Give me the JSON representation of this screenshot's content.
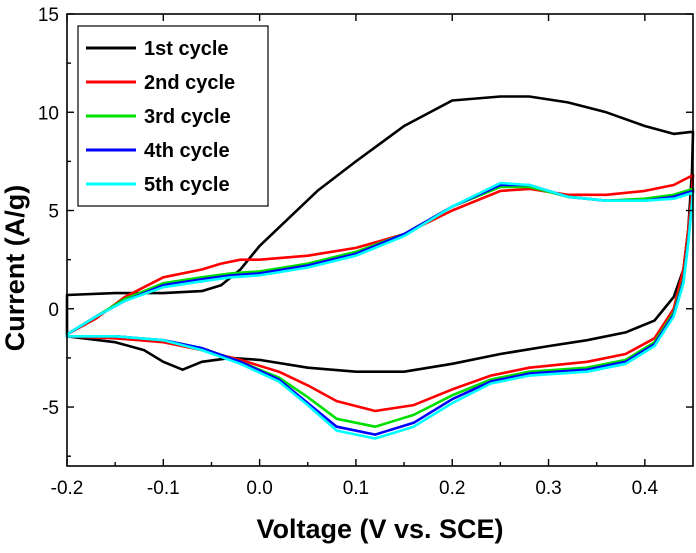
{
  "chart_data": {
    "type": "line",
    "title": "",
    "xlabel": "Voltage (V vs. SCE)",
    "ylabel": "Current (A/g)",
    "xlim": [
      -0.2,
      0.45
    ],
    "ylim": [
      -8,
      15
    ],
    "xticks": [
      -0.2,
      -0.1,
      0.0,
      0.1,
      0.2,
      0.3,
      0.4
    ],
    "xtick_labels": [
      "-0.2",
      "-0.1",
      "0.0",
      "0.1",
      "0.2",
      "0.3",
      "0.4"
    ],
    "yticks": [
      -5,
      0,
      5,
      10,
      15
    ],
    "ytick_labels": [
      "-5",
      "0",
      "5",
      "10",
      "15"
    ],
    "grid": false,
    "legend_position": "top-left",
    "series": [
      {
        "name": "1st cycle",
        "color": "#000000",
        "points": [
          [
            -0.2,
            0.7
          ],
          [
            -0.15,
            0.8
          ],
          [
            -0.1,
            0.8
          ],
          [
            -0.06,
            0.9
          ],
          [
            -0.04,
            1.2
          ],
          [
            -0.02,
            2.0
          ],
          [
            0.0,
            3.2
          ],
          [
            0.03,
            4.6
          ],
          [
            0.06,
            6.0
          ],
          [
            0.1,
            7.5
          ],
          [
            0.15,
            9.3
          ],
          [
            0.2,
            10.6
          ],
          [
            0.25,
            10.8
          ],
          [
            0.28,
            10.8
          ],
          [
            0.32,
            10.5
          ],
          [
            0.36,
            10.0
          ],
          [
            0.4,
            9.3
          ],
          [
            0.43,
            8.9
          ],
          [
            0.448,
            9.0
          ],
          [
            0.45,
            9.0
          ],
          [
            0.449,
            7.0
          ],
          [
            0.445,
            4.0
          ],
          [
            0.44,
            2.0
          ],
          [
            0.43,
            0.6
          ],
          [
            0.41,
            -0.6
          ],
          [
            0.38,
            -1.2
          ],
          [
            0.34,
            -1.6
          ],
          [
            0.3,
            -1.9
          ],
          [
            0.25,
            -2.3
          ],
          [
            0.2,
            -2.8
          ],
          [
            0.15,
            -3.2
          ],
          [
            0.1,
            -3.2
          ],
          [
            0.05,
            -3.0
          ],
          [
            0.0,
            -2.6
          ],
          [
            -0.03,
            -2.5
          ],
          [
            -0.06,
            -2.7
          ],
          [
            -0.08,
            -3.1
          ],
          [
            -0.1,
            -2.7
          ],
          [
            -0.12,
            -2.1
          ],
          [
            -0.15,
            -1.7
          ],
          [
            -0.2,
            -1.4
          ]
        ]
      },
      {
        "name": "2nd cycle",
        "color": "#ff0000",
        "points": [
          [
            -0.2,
            -1.3
          ],
          [
            -0.17,
            -0.5
          ],
          [
            -0.14,
            0.6
          ],
          [
            -0.1,
            1.6
          ],
          [
            -0.06,
            2.0
          ],
          [
            -0.04,
            2.3
          ],
          [
            -0.02,
            2.5
          ],
          [
            0.0,
            2.5
          ],
          [
            0.05,
            2.7
          ],
          [
            0.1,
            3.1
          ],
          [
            0.15,
            3.8
          ],
          [
            0.2,
            5.0
          ],
          [
            0.25,
            6.0
          ],
          [
            0.28,
            6.1
          ],
          [
            0.32,
            5.8
          ],
          [
            0.36,
            5.8
          ],
          [
            0.4,
            6.0
          ],
          [
            0.43,
            6.3
          ],
          [
            0.45,
            6.8
          ],
          [
            0.449,
            6.0
          ],
          [
            0.445,
            4.0
          ],
          [
            0.44,
            2.0
          ],
          [
            0.43,
            0.0
          ],
          [
            0.41,
            -1.5
          ],
          [
            0.38,
            -2.3
          ],
          [
            0.34,
            -2.7
          ],
          [
            0.28,
            -3.0
          ],
          [
            0.24,
            -3.4
          ],
          [
            0.2,
            -4.1
          ],
          [
            0.16,
            -4.9
          ],
          [
            0.12,
            -5.2
          ],
          [
            0.08,
            -4.7
          ],
          [
            0.05,
            -3.9
          ],
          [
            0.02,
            -3.2
          ],
          [
            -0.02,
            -2.6
          ],
          [
            -0.06,
            -2.1
          ],
          [
            -0.1,
            -1.7
          ],
          [
            -0.15,
            -1.5
          ],
          [
            -0.2,
            -1.4
          ]
        ]
      },
      {
        "name": "3rd cycle",
        "color": "#00e000",
        "points": [
          [
            -0.2,
            -1.3
          ],
          [
            -0.17,
            -0.4
          ],
          [
            -0.14,
            0.5
          ],
          [
            -0.1,
            1.3
          ],
          [
            -0.06,
            1.6
          ],
          [
            -0.03,
            1.8
          ],
          [
            0.0,
            1.9
          ],
          [
            0.05,
            2.3
          ],
          [
            0.1,
            2.9
          ],
          [
            0.15,
            3.8
          ],
          [
            0.2,
            5.2
          ],
          [
            0.25,
            6.2
          ],
          [
            0.28,
            6.2
          ],
          [
            0.32,
            5.7
          ],
          [
            0.36,
            5.5
          ],
          [
            0.4,
            5.6
          ],
          [
            0.43,
            5.8
          ],
          [
            0.45,
            6.1
          ],
          [
            0.449,
            5.5
          ],
          [
            0.445,
            3.5
          ],
          [
            0.44,
            1.5
          ],
          [
            0.43,
            -0.2
          ],
          [
            0.41,
            -1.7
          ],
          [
            0.38,
            -2.6
          ],
          [
            0.34,
            -3.0
          ],
          [
            0.28,
            -3.2
          ],
          [
            0.24,
            -3.6
          ],
          [
            0.2,
            -4.4
          ],
          [
            0.16,
            -5.4
          ],
          [
            0.12,
            -6.0
          ],
          [
            0.08,
            -5.6
          ],
          [
            0.05,
            -4.5
          ],
          [
            0.02,
            -3.5
          ],
          [
            -0.02,
            -2.7
          ],
          [
            -0.06,
            -2.0
          ],
          [
            -0.1,
            -1.6
          ],
          [
            -0.15,
            -1.4
          ],
          [
            -0.2,
            -1.4
          ]
        ]
      },
      {
        "name": "4th cycle",
        "color": "#0000ff",
        "points": [
          [
            -0.2,
            -1.3
          ],
          [
            -0.17,
            -0.4
          ],
          [
            -0.14,
            0.4
          ],
          [
            -0.1,
            1.2
          ],
          [
            -0.06,
            1.5
          ],
          [
            -0.03,
            1.7
          ],
          [
            0.0,
            1.8
          ],
          [
            0.05,
            2.2
          ],
          [
            0.1,
            2.8
          ],
          [
            0.15,
            3.8
          ],
          [
            0.2,
            5.2
          ],
          [
            0.25,
            6.3
          ],
          [
            0.28,
            6.3
          ],
          [
            0.32,
            5.7
          ],
          [
            0.36,
            5.5
          ],
          [
            0.4,
            5.5
          ],
          [
            0.43,
            5.7
          ],
          [
            0.45,
            6.0
          ],
          [
            0.449,
            5.4
          ],
          [
            0.445,
            3.4
          ],
          [
            0.44,
            1.4
          ],
          [
            0.43,
            -0.3
          ],
          [
            0.41,
            -1.8
          ],
          [
            0.38,
            -2.7
          ],
          [
            0.34,
            -3.1
          ],
          [
            0.28,
            -3.3
          ],
          [
            0.24,
            -3.7
          ],
          [
            0.2,
            -4.6
          ],
          [
            0.16,
            -5.8
          ],
          [
            0.12,
            -6.4
          ],
          [
            0.08,
            -6.0
          ],
          [
            0.05,
            -4.8
          ],
          [
            0.02,
            -3.6
          ],
          [
            -0.02,
            -2.7
          ],
          [
            -0.06,
            -2.0
          ],
          [
            -0.1,
            -1.6
          ],
          [
            -0.15,
            -1.4
          ],
          [
            -0.2,
            -1.4
          ]
        ]
      },
      {
        "name": "5th cycle",
        "color": "#00ffff",
        "points": [
          [
            -0.2,
            -1.3
          ],
          [
            -0.17,
            -0.4
          ],
          [
            -0.14,
            0.4
          ],
          [
            -0.1,
            1.1
          ],
          [
            -0.06,
            1.4
          ],
          [
            -0.03,
            1.6
          ],
          [
            0.0,
            1.7
          ],
          [
            0.05,
            2.1
          ],
          [
            0.1,
            2.7
          ],
          [
            0.15,
            3.7
          ],
          [
            0.2,
            5.2
          ],
          [
            0.25,
            6.4
          ],
          [
            0.28,
            6.3
          ],
          [
            0.32,
            5.7
          ],
          [
            0.36,
            5.5
          ],
          [
            0.4,
            5.5
          ],
          [
            0.43,
            5.6
          ],
          [
            0.45,
            5.9
          ],
          [
            0.449,
            5.3
          ],
          [
            0.445,
            3.3
          ],
          [
            0.44,
            1.3
          ],
          [
            0.43,
            -0.4
          ],
          [
            0.41,
            -1.9
          ],
          [
            0.38,
            -2.8
          ],
          [
            0.34,
            -3.2
          ],
          [
            0.28,
            -3.4
          ],
          [
            0.24,
            -3.8
          ],
          [
            0.2,
            -4.8
          ],
          [
            0.16,
            -6.0
          ],
          [
            0.12,
            -6.6
          ],
          [
            0.08,
            -6.2
          ],
          [
            0.05,
            -4.9
          ],
          [
            0.02,
            -3.7
          ],
          [
            -0.02,
            -2.8
          ],
          [
            -0.06,
            -2.1
          ],
          [
            -0.1,
            -1.6
          ],
          [
            -0.15,
            -1.4
          ],
          [
            -0.2,
            -1.4
          ]
        ]
      }
    ]
  }
}
